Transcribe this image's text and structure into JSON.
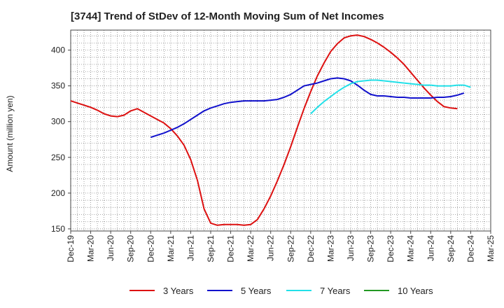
{
  "chart_data": {
    "type": "line",
    "title": "[3744]  Trend of StDev of 12-Month Moving Sum of Net Incomes",
    "xlabel": "",
    "ylabel": "Amount (million yen)",
    "ylim": [
      147,
      428
    ],
    "yticks": [
      150,
      200,
      250,
      300,
      350,
      400
    ],
    "xtick_labels": [
      "Dec-19",
      "Mar-20",
      "Jun-20",
      "Sep-20",
      "Dec-20",
      "Mar-21",
      "Jun-21",
      "Sep-21",
      "Dec-21",
      "Mar-22",
      "Jun-22",
      "Sep-22",
      "Dec-22",
      "Mar-23",
      "Jun-23",
      "Sep-23",
      "Dec-23",
      "Mar-24",
      "Jun-24",
      "Sep-24",
      "Dec-24",
      "Mar-25"
    ],
    "grid": true,
    "legend_position": "bottom",
    "series": [
      {
        "name": "3 Years",
        "color": "#dd1111",
        "start_index": 0,
        "values": [
          329,
          326,
          323,
          320,
          316,
          311,
          308,
          307,
          309,
          315,
          318,
          313,
          308,
          303,
          298,
          290,
          280,
          267,
          247,
          218,
          178,
          158,
          155,
          156,
          156,
          156,
          155,
          156,
          163,
          178,
          196,
          217,
          240,
          265,
          292,
          318,
          342,
          364,
          382,
          398,
          409,
          417,
          420,
          421,
          419,
          415,
          410,
          404,
          397,
          389,
          380,
          369,
          358,
          347,
          337,
          328,
          321,
          319,
          318
        ]
      },
      {
        "name": "5 Years",
        "color": "#1111cc",
        "start_index": 12,
        "values": [
          278,
          281,
          284,
          288,
          292,
          297,
          303,
          309,
          315,
          319,
          322,
          325,
          327,
          328,
          329,
          329,
          329,
          329,
          330,
          331,
          334,
          338,
          344,
          350,
          352,
          354,
          357,
          360,
          361,
          360,
          357,
          351,
          344,
          338,
          336,
          336,
          335,
          334,
          334,
          333,
          333,
          333,
          333,
          334,
          334,
          335,
          337,
          340
        ]
      },
      {
        "name": "7 Years",
        "color": "#22e0e8",
        "start_index": 36,
        "values": [
          311,
          320,
          328,
          335,
          342,
          348,
          353,
          356,
          357,
          358,
          358,
          357,
          356,
          355,
          354,
          353,
          352,
          351,
          351,
          350,
          350,
          350,
          351,
          351,
          348
        ]
      },
      {
        "name": "10 Years",
        "color": "#229922",
        "start_index": 0,
        "values": []
      }
    ]
  },
  "legend": {
    "items": [
      {
        "label": "3 Years",
        "color": "#dd1111"
      },
      {
        "label": "5 Years",
        "color": "#1111cc"
      },
      {
        "label": "7 Years",
        "color": "#22e0e8"
      },
      {
        "label": "10 Years",
        "color": "#229922"
      }
    ]
  }
}
